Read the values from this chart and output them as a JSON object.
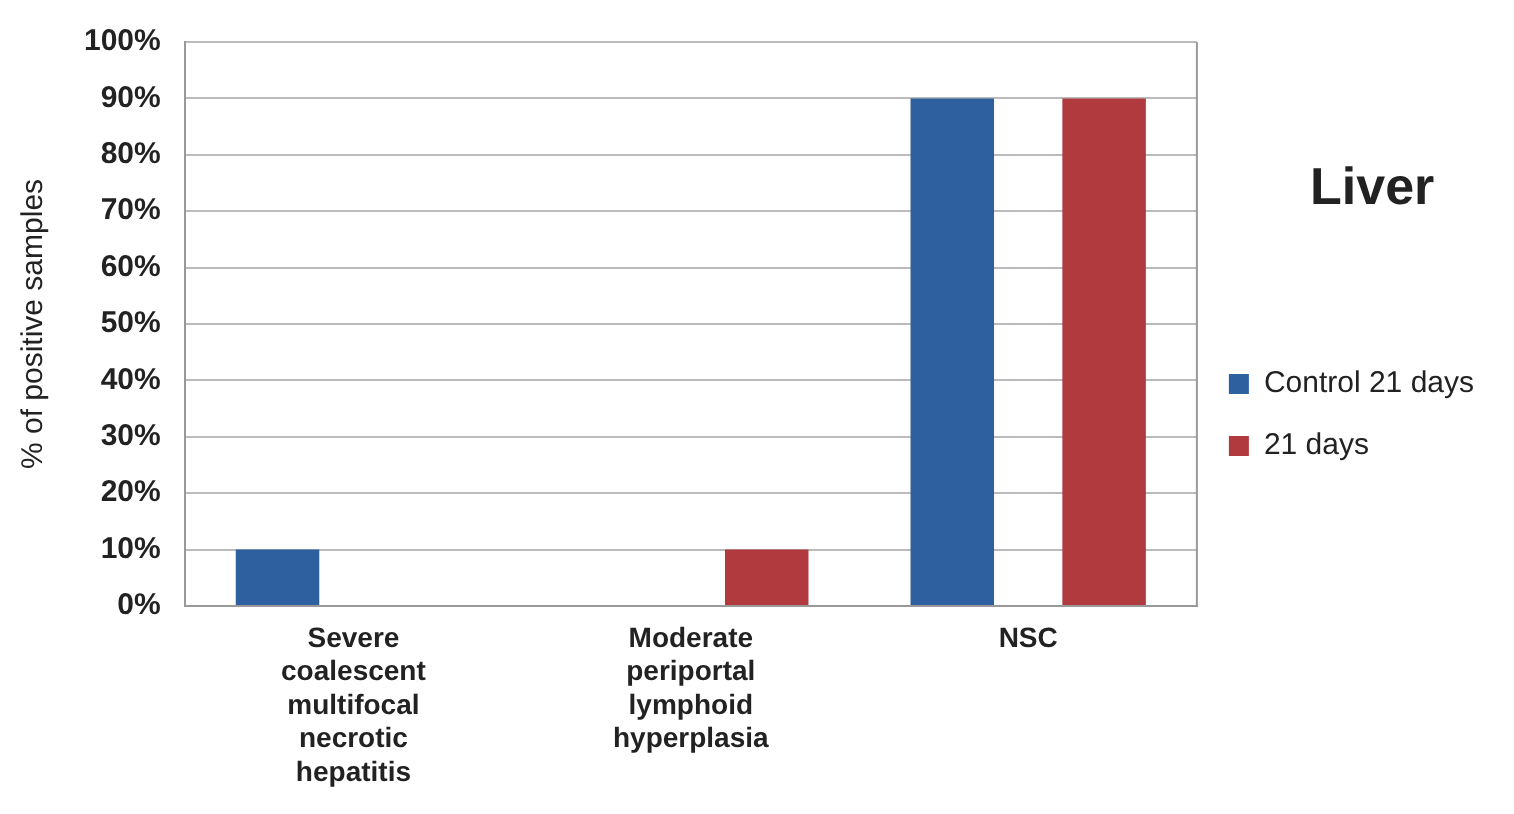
{
  "chart_data": {
    "type": "bar",
    "title": "Liver",
    "ylabel": "% of positive samples",
    "categories": [
      "Severe coalescent multifocal necrotic hepatitis",
      "Moderate periportal lymphoid hyperplasia",
      "NSC"
    ],
    "series": [
      {
        "name": "Control 21 days",
        "color": "#2e5f9e",
        "values": [
          10,
          0,
          90
        ]
      },
      {
        "name": "21 days",
        "color": "#b03a3e",
        "values": [
          0,
          10,
          90
        ]
      }
    ],
    "ylim": [
      0,
      100
    ],
    "yticks": [
      {
        "value": 0,
        "label": "0%"
      },
      {
        "value": 10,
        "label": "10%"
      },
      {
        "value": 20,
        "label": "20%"
      },
      {
        "value": 30,
        "label": "30%"
      },
      {
        "value": 40,
        "label": "40%"
      },
      {
        "value": 50,
        "label": "50%"
      },
      {
        "value": 60,
        "label": "60%"
      },
      {
        "value": 70,
        "label": "70%"
      },
      {
        "value": 80,
        "label": "80%"
      },
      {
        "value": 90,
        "label": "90%"
      },
      {
        "value": 100,
        "label": "100%"
      }
    ],
    "grid": "y",
    "legend": "right"
  }
}
